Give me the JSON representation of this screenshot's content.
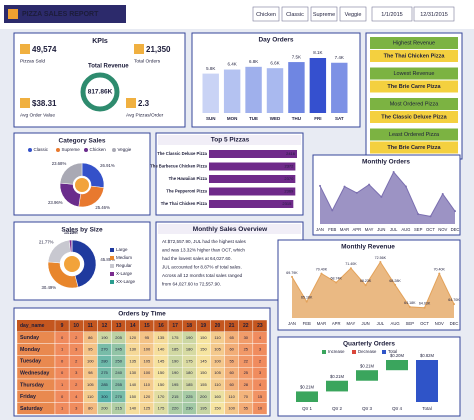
{
  "header": {
    "title": "PIZZA SALES REPORT",
    "filters": [
      "Chicken",
      "Classic",
      "Supreme",
      "Veggie"
    ],
    "date_from": "1/1/2015",
    "date_to": "12/31/2015"
  },
  "kpis": {
    "title": "KPIs",
    "items": [
      {
        "value": "49,574",
        "label": "Pizzas Sold"
      },
      {
        "value": "21,350",
        "label": "Total Orders"
      },
      {
        "value": "$38.31",
        "label": "Avg Order Value"
      },
      {
        "value": "2.3",
        "label": "Avg Pizzas/Order"
      }
    ],
    "revenue": {
      "label": "Total Revenue",
      "value": "817.86K"
    }
  },
  "day_orders": {
    "type": "bar",
    "title": "Day Orders",
    "categories": [
      "SUN",
      "MON",
      "TUE",
      "WED",
      "THU",
      "FRI",
      "SAT"
    ],
    "values": [
      5800,
      6400,
      6800,
      6600,
      7500,
      8100,
      7400
    ],
    "value_labels": [
      "5.8K",
      "6.4K",
      "6.8K",
      "6.6K",
      "7.5K",
      "8.1K",
      "7.4K"
    ],
    "colors": [
      "#c9d3f5",
      "#b4c2f1",
      "#9fb0ec",
      "#a9b9ef",
      "#6f86e2",
      "#3550cf",
      "#7d91e5"
    ]
  },
  "highlights": [
    {
      "label": "Highest Revenue",
      "value": "The Thai Chicken Pizza"
    },
    {
      "label": "Lowest Revenue",
      "value": "The Brie Carre Pizza"
    },
    {
      "label": "Most Ordered Pizza",
      "value": "The Classic Deluxe Pizza"
    },
    {
      "label": "Least Ordered Pizza",
      "value": "The Brie Carre Pizza"
    }
  ],
  "category_sales": {
    "type": "pie",
    "title": "Category Sales",
    "categories": [
      "Classic",
      "Supreme",
      "Chicken",
      "Veggie"
    ],
    "values": [
      26.91,
      25.46,
      23.96,
      23.68
    ],
    "value_labels": [
      "26.91%",
      "25.46%",
      "23.96%",
      "23.68%"
    ],
    "colors": [
      "#3451c9",
      "#e8792e",
      "#6a2c8c",
      "#a9a9b4"
    ]
  },
  "top_pizzas": {
    "type": "hbar",
    "title": "Top 5 Pizzas",
    "categories": [
      "The Classic Deluxe Pizza",
      "The Barbecue Chicken Pizza",
      "The Hawaiian Pizza",
      "The Pepperoni Pizza",
      "The Thai Chicken Pizza"
    ],
    "values": [
      2416,
      2372,
      2370,
      2369,
      2315
    ],
    "color": "#6f2a8a"
  },
  "monthly_orders": {
    "type": "area",
    "title": "Monthly Orders",
    "categories": [
      "JAN",
      "FEB",
      "MAR",
      "APR",
      "MAY",
      "JUN",
      "JUL",
      "AUG",
      "SEP",
      "OCT",
      "NOV",
      "DEC"
    ],
    "values": [
      1845,
      1685,
      1840,
      1799,
      1853,
      1773,
      1935,
      1841,
      1661,
      1646,
      1792,
      1680
    ],
    "color": "#7b6fb0"
  },
  "sales_by_size": {
    "type": "donut",
    "title": "Sales by Size",
    "categories": [
      "Large",
      "Medium",
      "Regular",
      "X-Large",
      "XX-Large"
    ],
    "values": [
      45.89,
      30.49,
      21.77,
      1.72,
      0.12
    ],
    "value_labels": [
      "45.89%",
      "30.49%",
      "21.77%",
      "1.72%",
      "0.12%"
    ],
    "colors": [
      "#1f3a9e",
      "#e8862c",
      "#c8c8d0",
      "#7a2b8e",
      "#2a9d8f"
    ]
  },
  "overview": {
    "title": "Monthly Sales Overview",
    "lines": [
      "At $72,557.90, JUL had the highest sales",
      "and was 13.32% higher than OCT, which",
      "had the lowest sales at 64,027.60.",
      "JUL accounted for 8.87% of total sales.",
      "Across all 12 months total sales ranged",
      "from 64,027.60 to 72,557.90."
    ]
  },
  "monthly_revenue": {
    "type": "area",
    "title": "Monthly Revenue",
    "categories": [
      "JAN",
      "FEB",
      "MAR",
      "APR",
      "MAY",
      "JUN",
      "JUL",
      "AUG",
      "SEP",
      "OCT",
      "NOV",
      "DEC"
    ],
    "values": [
      69.79,
      65.16,
      70.4,
      68.74,
      71.4,
      68.23,
      72.56,
      68.28,
      64.18,
      64.03,
      70.4,
      64.7
    ],
    "value_labels": [
      "69.79K",
      "65.16K",
      "70.40K",
      "68.74K",
      "71.40K",
      "68.23K",
      "72.56K",
      "68.28K",
      "64.18K",
      "64.03K",
      "70.40K",
      "64.70K"
    ],
    "color": "#e3a25a"
  },
  "orders_by_time": {
    "title": "Orders by Time",
    "header": "day_name",
    "hours": [
      9,
      10,
      11,
      12,
      13,
      14,
      15,
      16,
      17,
      18,
      19,
      20,
      21,
      22,
      23
    ],
    "rows": [
      {
        "day": "Sunday",
        "values": [
          0,
          2,
          86,
          190,
          205,
          120,
          95,
          135,
          175,
          190,
          150,
          110,
          65,
          30,
          4
        ]
      },
      {
        "day": "Monday",
        "values": [
          1,
          3,
          95,
          270,
          245,
          130,
          100,
          140,
          185,
          180,
          150,
          105,
          60,
          25,
          3
        ]
      },
      {
        "day": "Tuesday",
        "values": [
          0,
          2,
          100,
          280,
          250,
          135,
          105,
          145,
          190,
          175,
          145,
          100,
          55,
          22,
          2
        ]
      },
      {
        "day": "Wednesday",
        "values": [
          0,
          3,
          98,
          275,
          240,
          130,
          100,
          150,
          190,
          180,
          150,
          105,
          60,
          25,
          3
        ]
      },
      {
        "day": "Thursday",
        "values": [
          1,
          2,
          105,
          285,
          255,
          140,
          110,
          150,
          195,
          185,
          155,
          110,
          60,
          28,
          4
        ]
      },
      {
        "day": "Friday",
        "values": [
          0,
          4,
          110,
          300,
          270,
          150,
          120,
          170,
          215,
          225,
          200,
          160,
          110,
          70,
          15
        ]
      },
      {
        "day": "Saturday",
        "values": [
          1,
          3,
          80,
          200,
          215,
          140,
          125,
          175,
          220,
          230,
          195,
          150,
          100,
          55,
          10
        ]
      }
    ]
  },
  "quarterly_orders": {
    "type": "waterfall",
    "title": "Quarterly Orders",
    "categories": [
      "Qtr 1",
      "Qtr 2",
      "Qtr 3",
      "Qtr 4",
      "Total"
    ],
    "values": [
      0.2058,
      0.2084,
      0.205,
      0.1986,
      0.8179
    ],
    "value_labels": [
      "$0.21M",
      "$0.21M",
      "$0.21M",
      "$0.20M",
      "$0.82M"
    ],
    "legend": [
      {
        "name": "Increase",
        "color": "#3aa55d"
      },
      {
        "name": "Decrease",
        "color": "#d9463b"
      },
      {
        "name": "Total",
        "color": "#2f54c8"
      }
    ]
  }
}
